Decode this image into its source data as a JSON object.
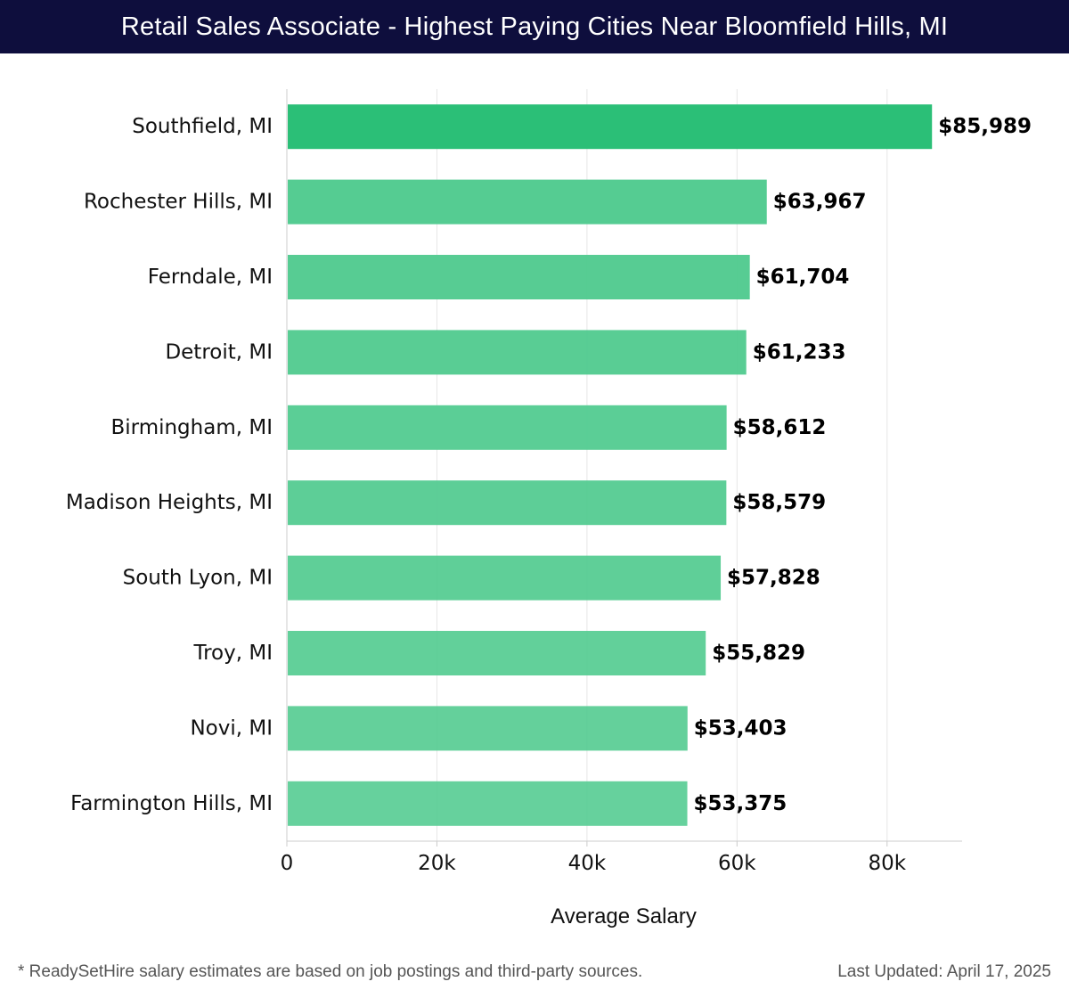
{
  "header": {
    "title": "Retail Sales Associate - Highest Paying Cities Near Bloomfield Hills, MI"
  },
  "footer": {
    "note": "* ReadySetHire salary estimates are based on job postings and third-party sources.",
    "updated": "Last Updated: April 17, 2025"
  },
  "chart_data": {
    "type": "bar",
    "orientation": "horizontal",
    "title": "Retail Sales Associate - Highest Paying Cities Near Bloomfield Hills, MI",
    "xlabel": "Average Salary",
    "ylabel": "",
    "xlim": [
      0,
      90000
    ],
    "xticks": [
      0,
      20000,
      40000,
      60000,
      80000
    ],
    "xtick_labels": [
      "0",
      "20k",
      "40k",
      "60k",
      "80k"
    ],
    "grid": true,
    "categories": [
      "Southfield, MI",
      "Rochester Hills, MI",
      "Ferndale, MI",
      "Detroit, MI",
      "Birmingham, MI",
      "Madison Heights, MI",
      "South Lyon, MI",
      "Troy, MI",
      "Novi, MI",
      "Farmington Hills, MI"
    ],
    "values": [
      85989,
      63967,
      61704,
      61233,
      58612,
      58579,
      57828,
      55829,
      53403,
      53375
    ],
    "value_labels": [
      "$85,989",
      "$63,967",
      "$61,704",
      "$61,233",
      "$58,612",
      "$58,579",
      "$57,828",
      "$55,829",
      "$53,403",
      "$53,375"
    ],
    "colors": {
      "highlight": "#2bbf77",
      "bar": "#4fca8e",
      "grid": "#e6e6e6",
      "axis": "#cccccc",
      "text": "#111111",
      "header_bg": "#0e0e3d"
    }
  }
}
